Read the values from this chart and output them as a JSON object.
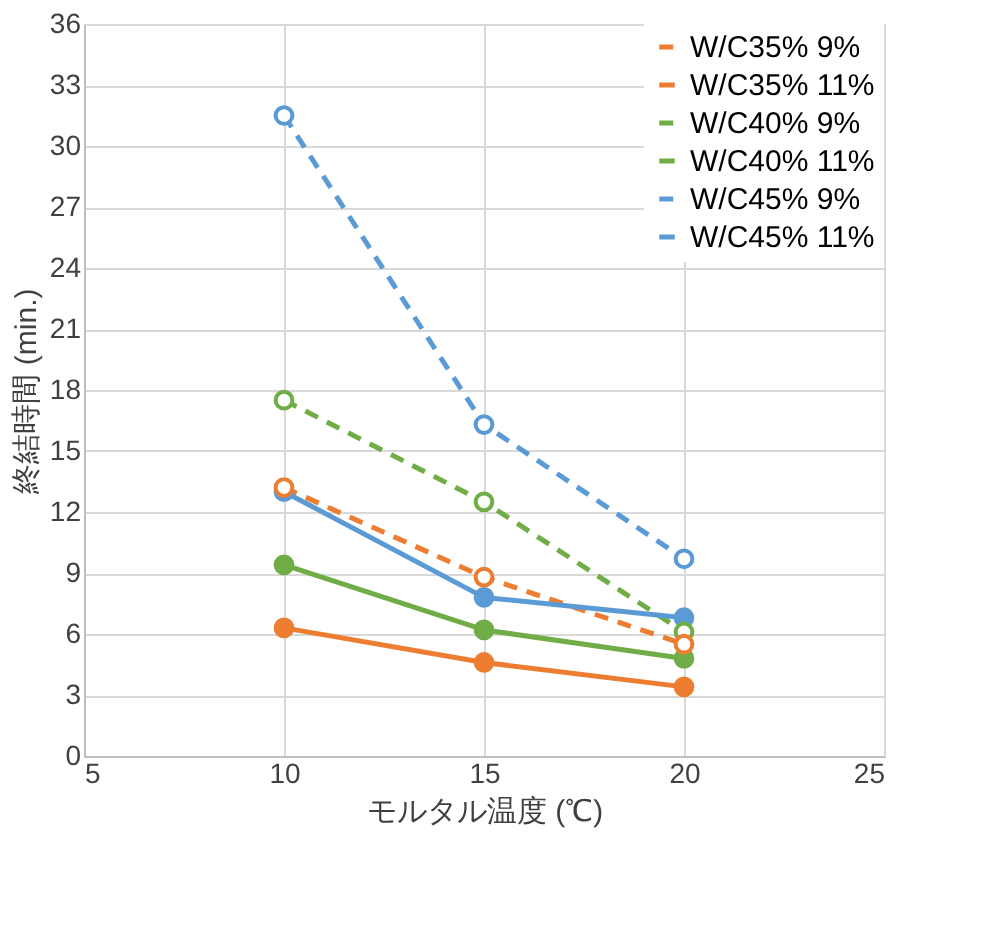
{
  "chart_data": {
    "type": "line",
    "xlabel": "モルタル温度 (℃)",
    "ylabel": "終結時間 (min.)",
    "x": [
      10,
      15,
      20
    ],
    "xlim": [
      5,
      25
    ],
    "xticks": [
      5,
      10,
      15,
      20,
      25
    ],
    "ylim": [
      0,
      36
    ],
    "yticks": [
      0,
      3,
      6,
      9,
      12,
      15,
      18,
      21,
      24,
      27,
      30,
      33,
      36
    ],
    "grid": true,
    "legend": "top right",
    "marker": "circle",
    "series": [
      {
        "name": "W/C35% 9%",
        "color": "#ed7d31",
        "line_style": "dashed",
        "values": [
          13.2,
          8.8,
          5.5
        ]
      },
      {
        "name": "W/C35% 11%",
        "color": "#ed7d31",
        "line_style": "solid",
        "values": [
          6.3,
          4.6,
          3.4
        ]
      },
      {
        "name": "W/C40% 9%",
        "color": "#70ad47",
        "line_style": "dashed",
        "values": [
          17.5,
          12.5,
          6.1
        ]
      },
      {
        "name": "W/C40% 11%",
        "color": "#70ad47",
        "line_style": "solid",
        "values": [
          9.4,
          6.2,
          4.8
        ]
      },
      {
        "name": "W/C45% 9%",
        "color": "#5b9bd5",
        "line_style": "dashed",
        "values": [
          31.5,
          16.3,
          9.7
        ]
      },
      {
        "name": "W/C45% 11%",
        "color": "#5b9bd5",
        "line_style": "solid",
        "values": [
          13.0,
          7.8,
          6.8
        ]
      }
    ]
  }
}
